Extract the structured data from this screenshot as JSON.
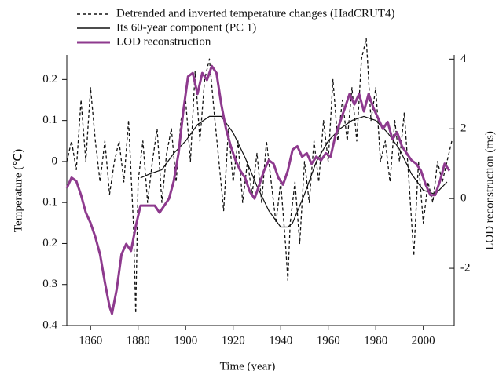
{
  "chart_data": {
    "type": "line",
    "x_label": "Time (year)",
    "y_label": "Temperature (℃)",
    "y2_label": "LOD reconstruction (ms)",
    "xlim": [
      1850,
      2013
    ],
    "xticks": [
      1860,
      1880,
      1900,
      1920,
      1940,
      1960,
      1980,
      2000
    ],
    "ylim": [
      -0.4,
      0.26
    ],
    "yticks": [
      {
        "value": -0.4,
        "label": "0.4"
      },
      {
        "value": -0.3,
        "label": "0.3"
      },
      {
        "value": -0.2,
        "label": "0.2"
      },
      {
        "value": -0.1,
        "label": "0.1"
      },
      0,
      0.1,
      0.2
    ],
    "y2lim": [
      -3.64,
      4.12
    ],
    "y2ticks": [
      -2,
      0,
      2,
      4
    ],
    "series": [
      {
        "name": "Detrended and inverted temperature changes (HadCRUT4)",
        "color": "#111111",
        "style": "dashed",
        "x": [
          1850,
          1852,
          1854,
          1856,
          1858,
          1860,
          1862,
          1864,
          1866,
          1868,
          1870,
          1872,
          1874,
          1876,
          1878,
          1879,
          1880,
          1882,
          1884,
          1886,
          1888,
          1890,
          1892,
          1894,
          1896,
          1898,
          1900,
          1902,
          1904,
          1906,
          1908,
          1910,
          1912,
          1914,
          1916,
          1918,
          1920,
          1922,
          1924,
          1926,
          1928,
          1930,
          1932,
          1934,
          1936,
          1938,
          1940,
          1942,
          1943,
          1944,
          1946,
          1948,
          1950,
          1952,
          1954,
          1956,
          1958,
          1960,
          1962,
          1964,
          1966,
          1968,
          1970,
          1972,
          1974,
          1976,
          1978,
          1980,
          1982,
          1984,
          1986,
          1988,
          1990,
          1992,
          1994,
          1996,
          1998,
          2000,
          2002,
          2004,
          2006,
          2008,
          2010,
          2012
        ],
        "values": [
          0.0,
          0.05,
          -0.02,
          0.15,
          0.0,
          0.18,
          0.05,
          -0.05,
          0.05,
          -0.08,
          0.0,
          0.05,
          -0.05,
          0.1,
          -0.15,
          -0.37,
          -0.05,
          0.05,
          -0.1,
          0.0,
          0.08,
          -0.1,
          0.02,
          0.08,
          -0.05,
          0.1,
          0.15,
          0.0,
          0.22,
          0.05,
          0.2,
          0.25,
          0.12,
          0.0,
          -0.12,
          0.08,
          -0.05,
          0.05,
          -0.1,
          0.0,
          -0.08,
          0.02,
          -0.1,
          0.05,
          -0.05,
          -0.15,
          -0.05,
          -0.2,
          -0.29,
          -0.15,
          -0.05,
          -0.2,
          0.0,
          -0.1,
          0.05,
          -0.05,
          0.1,
          0.0,
          0.2,
          0.05,
          0.15,
          0.05,
          0.18,
          0.05,
          0.25,
          0.3,
          0.1,
          0.18,
          0.0,
          0.05,
          -0.05,
          0.1,
          0.0,
          0.12,
          -0.05,
          -0.23,
          0.0,
          -0.15,
          -0.05,
          -0.1,
          0.0,
          -0.05,
          0.0,
          0.05
        ]
      },
      {
        "name": "Its 60-year component (PC 1)",
        "color": "#111111",
        "style": "solid",
        "x": [
          1881,
          1885,
          1890,
          1895,
          1900,
          1905,
          1910,
          1915,
          1920,
          1925,
          1930,
          1935,
          1940,
          1943,
          1945,
          1950,
          1955,
          1960,
          1965,
          1970,
          1975,
          1980,
          1985,
          1990,
          1995,
          2000,
          2005,
          2010
        ],
        "values": [
          -0.04,
          -0.03,
          -0.02,
          0.02,
          0.05,
          0.09,
          0.11,
          0.11,
          0.07,
          0.01,
          -0.06,
          -0.12,
          -0.16,
          -0.16,
          -0.15,
          -0.08,
          0.0,
          0.05,
          0.08,
          0.1,
          0.11,
          0.1,
          0.07,
          0.03,
          -0.03,
          -0.07,
          -0.08,
          -0.05
        ]
      },
      {
        "name": "LOD reconstruction",
        "color": "#8e3a8e",
        "style": "thick",
        "axis": "y2",
        "x": [
          1850,
          1852,
          1854,
          1856,
          1858,
          1860,
          1862,
          1864,
          1866,
          1868,
          1869,
          1871,
          1873,
          1875,
          1877,
          1879,
          1881,
          1884,
          1887,
          1889,
          1891,
          1893,
          1895,
          1897,
          1899,
          1901,
          1903,
          1905,
          1907,
          1909,
          1911,
          1913,
          1915,
          1917,
          1919,
          1921,
          1923,
          1925,
          1927,
          1929,
          1931,
          1933,
          1935,
          1937,
          1939,
          1941,
          1943,
          1945,
          1947,
          1949,
          1951,
          1953,
          1955,
          1957,
          1959,
          1961,
          1963,
          1965,
          1967,
          1969,
          1971,
          1973,
          1975,
          1977,
          1979,
          1981,
          1983,
          1985,
          1987,
          1989,
          1991,
          1993,
          1995,
          1997,
          1999,
          2001,
          2003,
          2005,
          2007,
          2009,
          2011
        ],
        "values": [
          0.3,
          0.6,
          0.5,
          0.1,
          -0.4,
          -0.7,
          -1.1,
          -1.6,
          -2.4,
          -3.1,
          -3.3,
          -2.6,
          -1.6,
          -1.3,
          -1.5,
          -0.8,
          -0.2,
          -0.2,
          -0.2,
          -0.4,
          -0.2,
          0.0,
          0.5,
          1.3,
          2.5,
          3.5,
          3.6,
          3.0,
          3.6,
          3.4,
          3.8,
          3.6,
          2.7,
          2.0,
          1.5,
          1.1,
          0.8,
          0.6,
          0.2,
          0.0,
          0.4,
          0.8,
          1.1,
          1.0,
          0.6,
          0.4,
          0.8,
          1.4,
          1.5,
          1.2,
          1.3,
          1.0,
          1.2,
          1.1,
          1.3,
          1.2,
          1.8,
          2.2,
          2.6,
          3.0,
          2.7,
          3.0,
          2.5,
          3.0,
          2.6,
          2.3,
          2.0,
          2.2,
          1.7,
          1.9,
          1.5,
          1.3,
          1.1,
          1.0,
          0.8,
          0.4,
          0.1,
          0.1,
          0.5,
          1.0,
          0.8
        ]
      }
    ]
  }
}
